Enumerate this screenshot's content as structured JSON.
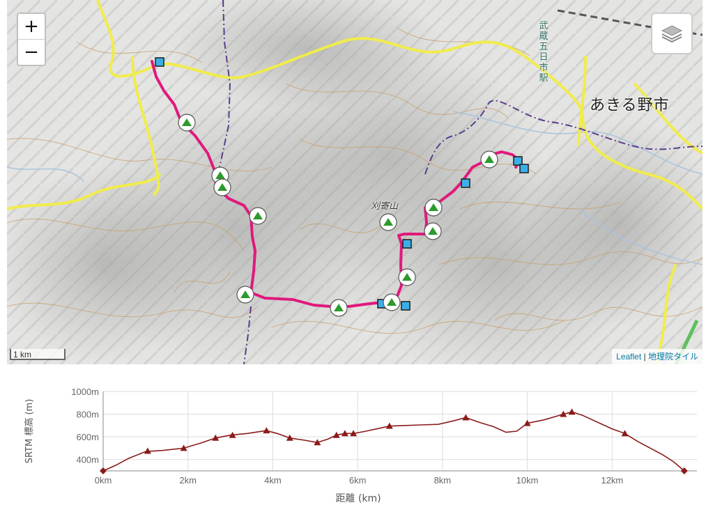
{
  "map": {
    "zoom_in": "+",
    "zoom_out": "−",
    "layers_icon": "layers-icon",
    "city_label": "あきる野市",
    "station_label": "武蔵五日市駅",
    "peak_label": "刈寄山",
    "scale_label": "1 km",
    "attribution": {
      "leaflet": "Leaflet",
      "separator": " | ",
      "tiles": "地理院タイル"
    },
    "colors": {
      "track": "#e0197d",
      "road": "#f1ec4b",
      "contour": "#c9a06a",
      "boundary": "#5a3c8c",
      "waypoint": "#3bb0e8",
      "peak": "#2d9a2d"
    }
  },
  "chart_data": {
    "type": "area",
    "title": "",
    "xlabel": "距離 (km)",
    "ylabel": "SRTM 標高 (m)",
    "xlim": [
      0,
      14
    ],
    "ylim": [
      300,
      1000
    ],
    "x_ticks": [
      "0km",
      "2km",
      "4km",
      "6km",
      "8km",
      "10km",
      "12km"
    ],
    "y_ticks": [
      "1000m",
      "800m",
      "600m",
      "400m"
    ],
    "line_color": "#8b1a1a",
    "profile": [
      [
        0,
        300
      ],
      [
        0.3,
        350
      ],
      [
        0.6,
        410
      ],
      [
        1.0,
        470
      ],
      [
        1.4,
        480
      ],
      [
        1.9,
        500
      ],
      [
        2.3,
        545
      ],
      [
        2.65,
        590
      ],
      [
        3.0,
        615
      ],
      [
        3.4,
        630
      ],
      [
        3.85,
        655
      ],
      [
        4.1,
        630
      ],
      [
        4.4,
        590
      ],
      [
        4.75,
        570
      ],
      [
        5.05,
        550
      ],
      [
        5.3,
        580
      ],
      [
        5.5,
        615
      ],
      [
        5.7,
        630
      ],
      [
        5.9,
        630
      ],
      [
        6.2,
        650
      ],
      [
        6.45,
        670
      ],
      [
        6.75,
        695
      ],
      [
        7.1,
        700
      ],
      [
        7.5,
        705
      ],
      [
        7.9,
        710
      ],
      [
        8.25,
        740
      ],
      [
        8.55,
        770
      ],
      [
        8.85,
        730
      ],
      [
        9.2,
        690
      ],
      [
        9.5,
        640
      ],
      [
        9.75,
        650
      ],
      [
        10.0,
        720
      ],
      [
        10.4,
        750
      ],
      [
        10.85,
        800
      ],
      [
        11.05,
        820
      ],
      [
        11.3,
        790
      ],
      [
        11.65,
        730
      ],
      [
        12.0,
        670
      ],
      [
        12.3,
        630
      ],
      [
        12.6,
        560
      ],
      [
        12.9,
        500
      ],
      [
        13.2,
        440
      ],
      [
        13.45,
        380
      ],
      [
        13.7,
        300
      ]
    ],
    "markers": [
      [
        0,
        300
      ],
      [
        1.05,
        475
      ],
      [
        1.9,
        500
      ],
      [
        2.65,
        590
      ],
      [
        3.05,
        615
      ],
      [
        3.85,
        655
      ],
      [
        4.4,
        590
      ],
      [
        5.05,
        550
      ],
      [
        5.5,
        615
      ],
      [
        5.7,
        630
      ],
      [
        5.9,
        630
      ],
      [
        6.75,
        695
      ],
      [
        8.55,
        770
      ],
      [
        10.0,
        720
      ],
      [
        10.85,
        800
      ],
      [
        11.05,
        820
      ],
      [
        12.3,
        630
      ],
      [
        13.7,
        300
      ]
    ]
  }
}
